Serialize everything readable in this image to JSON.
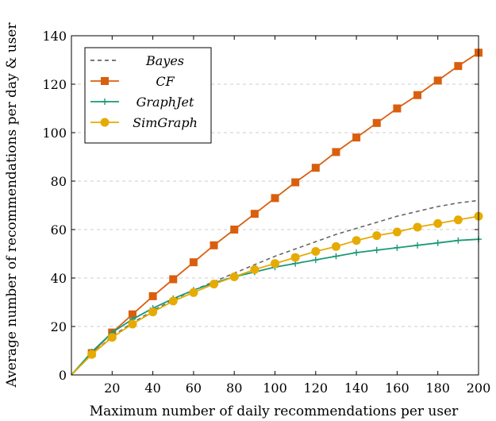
{
  "chart_data": {
    "type": "line",
    "title": "",
    "xlabel": "Maximum number of daily recommendations per user",
    "ylabel": "Average number of recommendations per day & user",
    "xlim": [
      0,
      200
    ],
    "ylim": [
      0,
      140
    ],
    "xticks": [
      20,
      40,
      60,
      80,
      100,
      120,
      140,
      160,
      180,
      200
    ],
    "yticks": [
      0,
      20,
      40,
      60,
      80,
      100,
      120,
      140
    ],
    "grid": "horizontal-dashed",
    "legend_position": "top-left",
    "series": [
      {
        "name": "Bayes",
        "color": "#666666",
        "style": "dashed",
        "marker": "none",
        "x": [
          0,
          10,
          20,
          30,
          40,
          50,
          60,
          70,
          80,
          90,
          100,
          110,
          120,
          130,
          140,
          150,
          160,
          170,
          180,
          190,
          200
        ],
        "y": [
          0,
          8.5,
          16,
          21.5,
          26.5,
          31,
          35,
          38.5,
          42,
          45.5,
          49,
          52,
          55,
          58,
          60.5,
          63,
          65.5,
          67.5,
          69.5,
          71,
          72
        ]
      },
      {
        "name": "CF",
        "color": "#d95f0e",
        "style": "solid",
        "marker": "square",
        "x": [
          0,
          10,
          20,
          30,
          40,
          50,
          60,
          70,
          80,
          90,
          100,
          110,
          120,
          130,
          140,
          150,
          160,
          170,
          180,
          190,
          200
        ],
        "y": [
          0,
          9,
          17.5,
          25,
          32.5,
          39.5,
          46.5,
          53.5,
          60,
          66.5,
          73,
          79.5,
          85.5,
          92,
          98,
          104,
          110,
          115.5,
          121.5,
          127.5,
          133
        ]
      },
      {
        "name": "GraphJet",
        "color": "#1a9a76",
        "style": "solid",
        "marker": "plus",
        "x": [
          0,
          10,
          20,
          30,
          40,
          50,
          60,
          70,
          80,
          90,
          100,
          110,
          120,
          130,
          140,
          150,
          160,
          170,
          180,
          190,
          200
        ],
        "y": [
          0,
          9.5,
          17.5,
          23,
          27.5,
          31.5,
          35,
          38,
          40.5,
          42.5,
          44.5,
          46,
          47.5,
          49,
          50.5,
          51.5,
          52.5,
          53.5,
          54.5,
          55.5,
          56
        ]
      },
      {
        "name": "SimGraph",
        "color": "#e6ab02",
        "style": "solid",
        "marker": "circle",
        "x": [
          0,
          10,
          20,
          30,
          40,
          50,
          60,
          70,
          80,
          90,
          100,
          110,
          120,
          130,
          140,
          150,
          160,
          170,
          180,
          190,
          200
        ],
        "y": [
          0,
          8.5,
          15.5,
          21,
          26,
          30.5,
          34,
          37.5,
          40.5,
          43.5,
          46,
          48.5,
          51,
          53,
          55.5,
          57.5,
          59,
          61,
          62.5,
          64,
          65.5
        ]
      }
    ]
  }
}
